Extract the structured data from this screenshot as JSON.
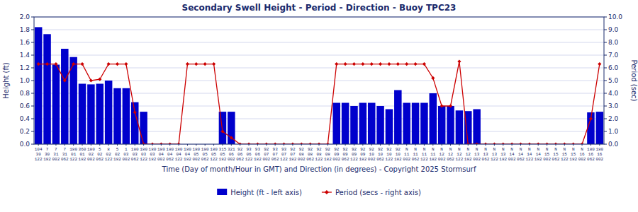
{
  "chart_data": {
    "type": "bar",
    "title": "Secondary Swell Height - Period - Direction - Buoy TPC23",
    "xlabel": "Time (Day of month/Hour in GMT) and Direction (in degrees) - Copyright 2025 Stormsurf",
    "ylabel": "Height (ft)",
    "y2label": "Period (sec)",
    "ylim": [
      0.0,
      2.0
    ],
    "yticks": [
      {
        "value": 0.0,
        "label": "0.0"
      },
      0.2,
      0.4,
      0.6,
      0.8,
      {
        "value": 1.0,
        "label": "1.0"
      },
      1.2,
      1.4,
      1.6,
      1.8,
      {
        "value": 2.0,
        "label": "2.0"
      }
    ],
    "y2lim": [
      0.0,
      10.0
    ],
    "y2ticks": [
      {
        "value": 0.0,
        "label": "0.0"
      },
      {
        "value": 1.0,
        "label": "1.0"
      },
      {
        "value": 2.0,
        "label": "2.0"
      },
      {
        "value": 3.0,
        "label": "3.0"
      },
      {
        "value": 4.0,
        "label": "4.0"
      },
      {
        "value": 5.0,
        "label": "5.0"
      },
      {
        "value": 6.0,
        "label": "6.0"
      },
      {
        "value": 7.0,
        "label": "7.0"
      },
      {
        "value": 8.0,
        "label": "8.0"
      },
      {
        "value": 9.0,
        "label": "9.0"
      },
      {
        "value": 10.0,
        "label": "10.0"
      }
    ],
    "grid": true,
    "legend": "bottom",
    "categories": [
      "104\n30\n122",
      "7\n30\n182",
      "7\n31\n002",
      "7\n31\n062",
      "180\n01\n122",
      "360\n01\n182",
      "180\n02\n002",
      "5\n02\n062",
      "8\n02\n122",
      "5\n02\n182",
      "1\n03\n002",
      "180\n03\n062",
      "180\n03\n122",
      "180\n03\n182",
      "180\n04\n002",
      "180\n04\n062",
      "180\n04\n122",
      "180\n04\n182",
      "180\n05\n002",
      "180\n05\n062",
      "180\n05\n122",
      "315\n05\n182",
      "321\n06\n002",
      "92\n06\n062",
      "93\n06\n122",
      "93\n06\n182",
      "92\n07\n002",
      "93\n07\n062",
      "93\n07\n122",
      "92\n07\n182",
      "92\n08\n002",
      "92\n08\n062",
      "92\n08\n122",
      "92\n08\n182",
      "92\n09\n002",
      "92\n09\n062",
      "92\n09\n122",
      "92\n09\n182",
      "92\n10\n002",
      "92\n10\n062",
      "92\n10\n122",
      "92\n10\n182",
      "N\n11\n002",
      "N\n11\n062",
      "N\n11\n122",
      "N\n11\n182",
      "N\n12\n002",
      "N\n12\n062",
      "N\n12\n122",
      "N\n12\n182",
      "N\n13\n002",
      "N\n13\n062",
      "N\n13\n122",
      "N\n13\n182",
      "N\n14\n002",
      "N\n14\n062",
      "N\n14\n122",
      "N\n14\n182",
      "N\n15\n002",
      "N\n15\n062",
      "N\n15\n122",
      "N\n15\n182",
      "N\n16\n002",
      "180\n16\n062",
      "180\n16\n002"
    ],
    "series": [
      {
        "name": "Height (ft - left axis)",
        "type": "bar",
        "color": "#0000CC",
        "values": [
          1.84,
          1.73,
          1.25,
          1.5,
          1.37,
          0.95,
          0.94,
          0.95,
          1.0,
          0.88,
          0.88,
          0.66,
          0.51,
          0.0,
          0.0,
          0.0,
          0.0,
          0.0,
          0.0,
          0.0,
          0.0,
          0.51,
          0.51,
          0.0,
          0.0,
          0.0,
          0.0,
          0.0,
          0.0,
          0.0,
          0.0,
          0.0,
          0.0,
          0.0,
          0.65,
          0.65,
          0.6,
          0.65,
          0.65,
          0.6,
          0.55,
          0.85,
          0.65,
          0.65,
          0.65,
          0.8,
          0.6,
          0.6,
          0.53,
          0.52,
          0.55,
          0.0,
          0.0,
          0.0,
          0.0,
          0.0,
          0.0,
          0.0,
          0.0,
          0.0,
          0.0,
          0.0,
          0.0,
          0.5,
          0.51
        ]
      },
      {
        "name": "Period (secs - right axis)",
        "type": "line",
        "color": "#CC0000",
        "marker": "diamond",
        "axis": "y2",
        "values": [
          6.3,
          6.3,
          6.3,
          5.0,
          6.3,
          6.3,
          5.0,
          5.1,
          6.3,
          6.3,
          6.3,
          2.5,
          0.0,
          0.0,
          0.0,
          0.0,
          0.0,
          6.3,
          6.3,
          6.3,
          6.3,
          1.0,
          0.5,
          0.0,
          0.0,
          0.0,
          0.0,
          0.0,
          0.0,
          0.0,
          0.0,
          0.0,
          0.0,
          0.0,
          6.3,
          6.3,
          6.3,
          6.3,
          6.3,
          6.3,
          6.3,
          6.3,
          6.3,
          6.3,
          6.3,
          5.2,
          3.0,
          3.0,
          6.5,
          0.0,
          0.0,
          0.0,
          0.0,
          0.0,
          0.0,
          0.0,
          0.0,
          0.0,
          0.0,
          0.0,
          0.0,
          0.0,
          0.0,
          2.0,
          6.3
        ]
      }
    ]
  }
}
